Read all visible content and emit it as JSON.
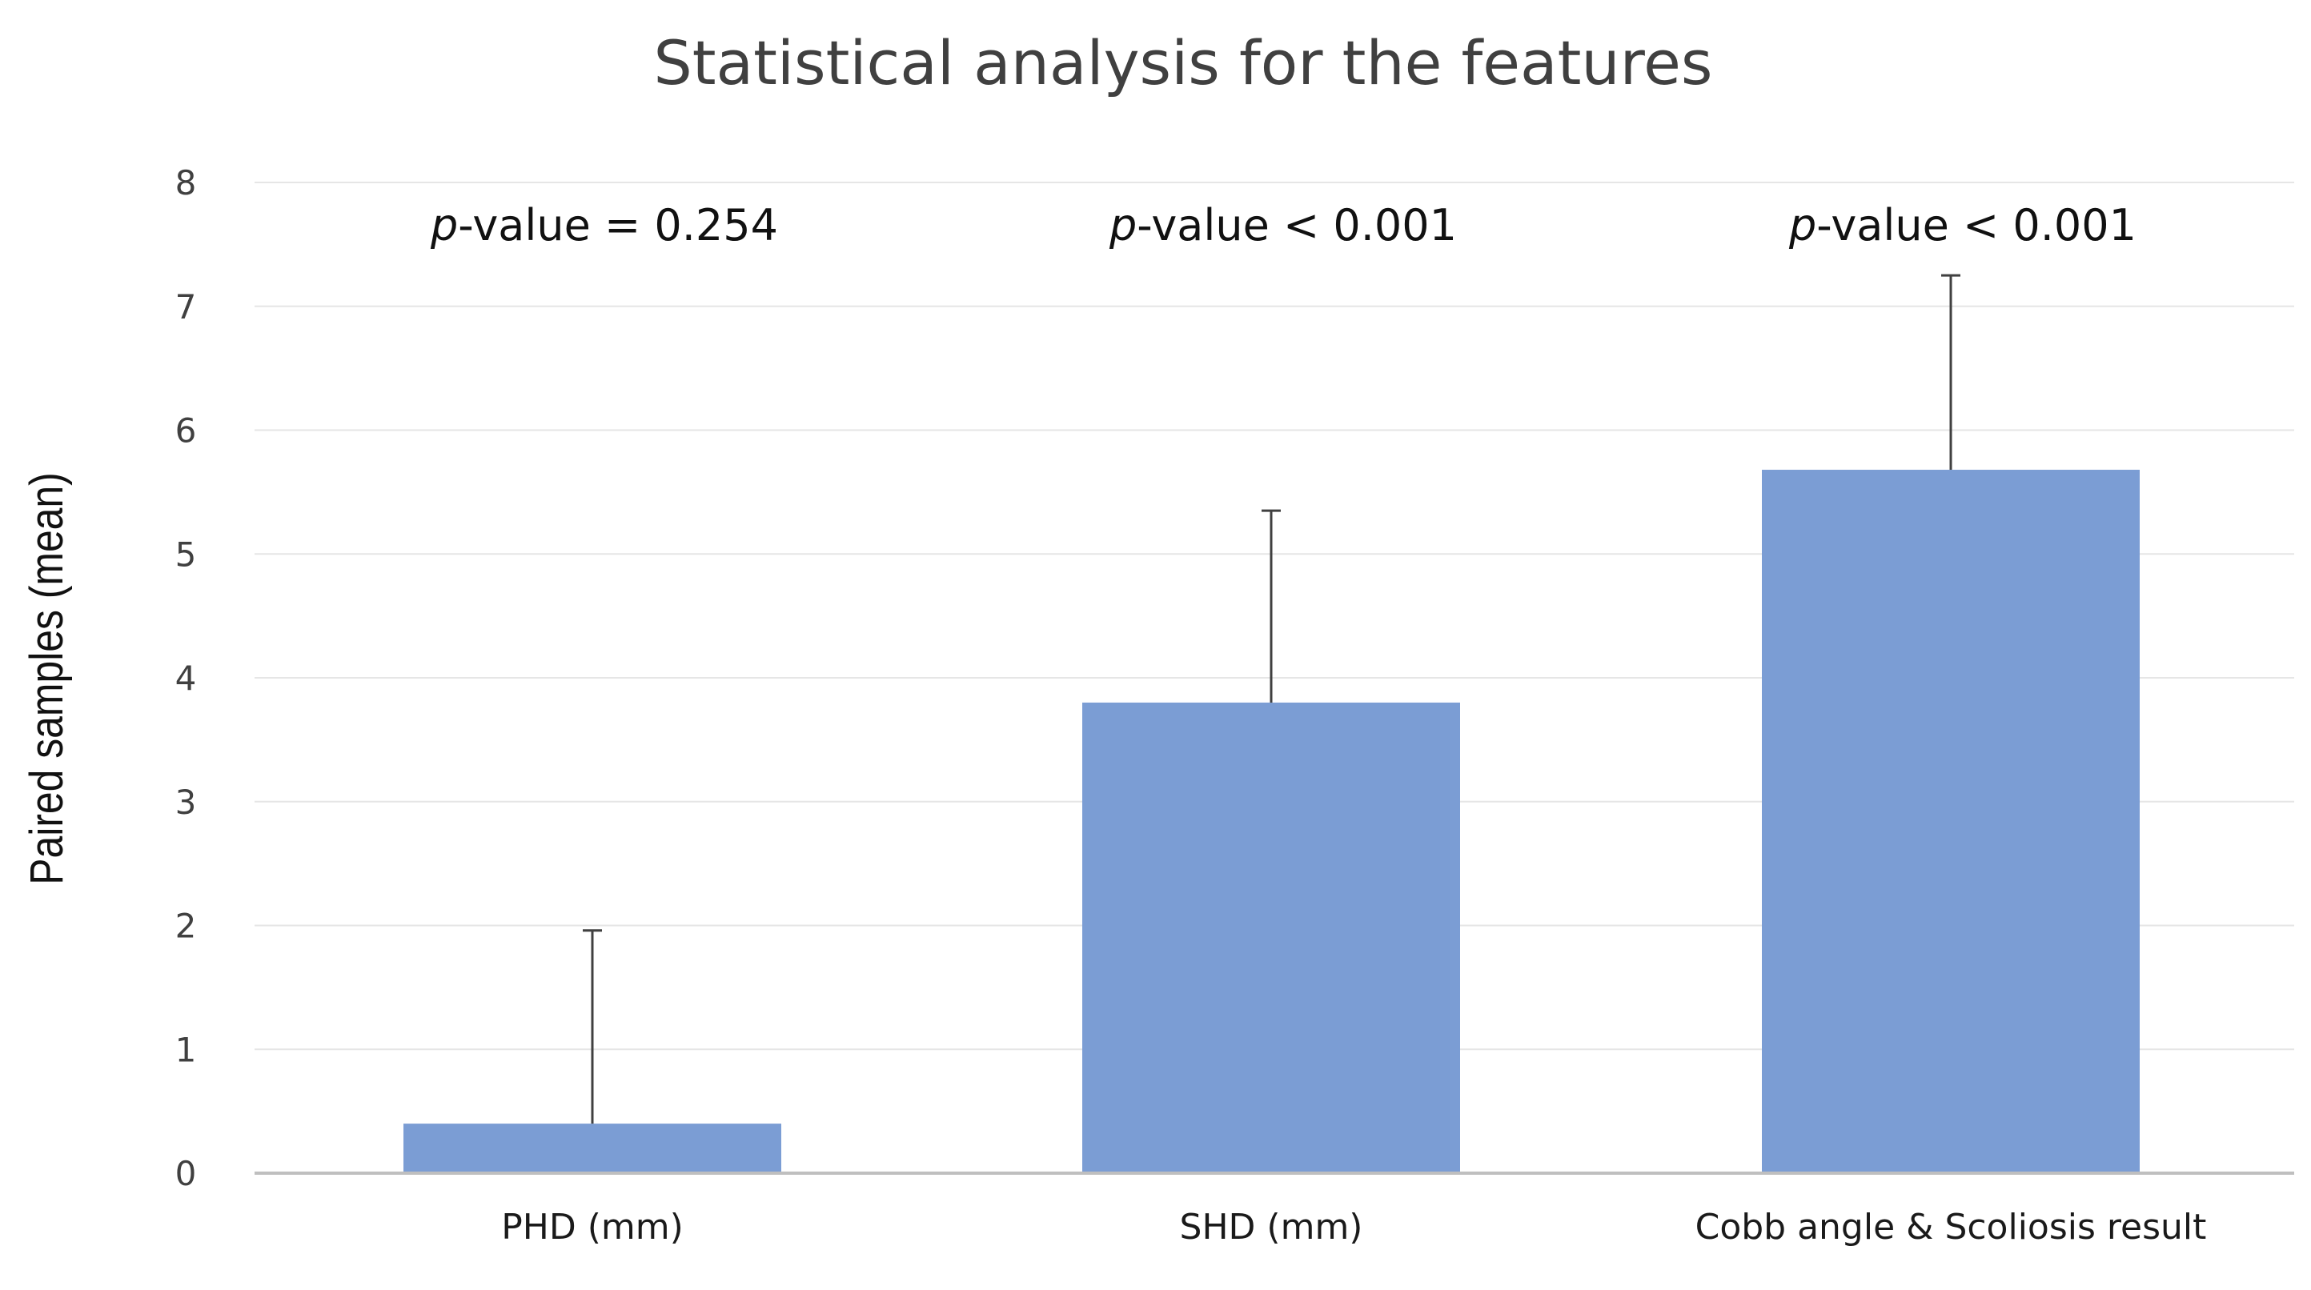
{
  "chart_data": {
    "type": "bar",
    "title": "Statistical analysis for the features",
    "xlabel": "",
    "ylabel": "Paired samples (mean)",
    "categories": [
      "PHD (mm)",
      "SHD (mm)",
      "Cobb angle & Scoliosis result"
    ],
    "values": [
      0.4,
      3.8,
      5.68
    ],
    "error_plus": [
      1.56,
      1.55,
      1.57
    ],
    "ylim": [
      0,
      8
    ],
    "yticks": [
      0,
      1,
      2,
      3,
      4,
      5,
      6,
      7,
      8
    ],
    "grid": true,
    "annotations": [
      {
        "prefix": "p",
        "text": "-value = 0.254"
      },
      {
        "prefix": "p",
        "text": "-value < 0.001"
      },
      {
        "prefix": "p",
        "text": "-value < 0.001"
      }
    ],
    "colors": {
      "bar": "#7b9dd4",
      "grid": "#e6e6e6",
      "axis": "#bfbfbf",
      "error_bar": "#404040"
    }
  }
}
